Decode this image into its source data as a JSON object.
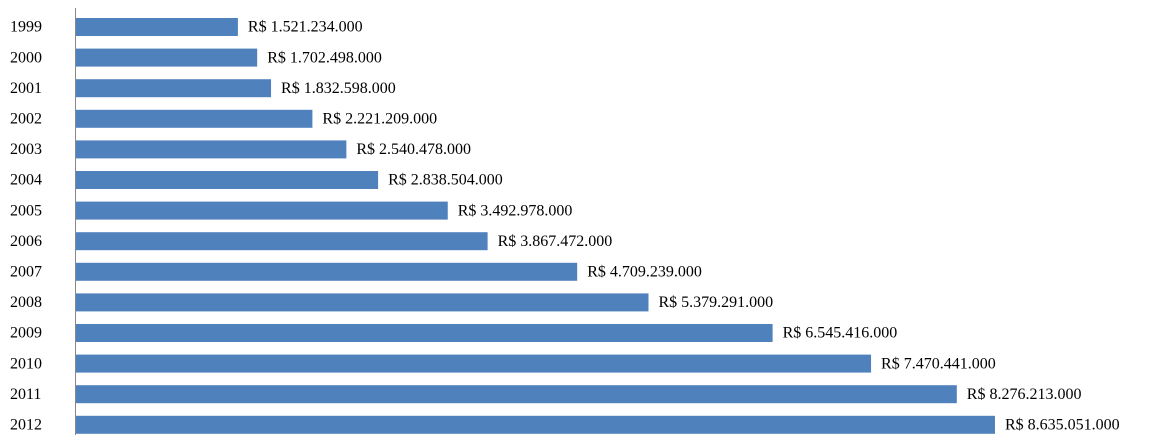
{
  "chart_data": {
    "type": "bar",
    "orientation": "horizontal",
    "color": "#4f81bd",
    "categories": [
      "1999",
      "2000",
      "2001",
      "2002",
      "2003",
      "2004",
      "2005",
      "2006",
      "2007",
      "2008",
      "2009",
      "2010",
      "2011",
      "2012"
    ],
    "values": [
      1521234000,
      1702498000,
      1832598000,
      2221209000,
      2540478000,
      2838504000,
      3492978000,
      3867472000,
      4709239000,
      5379291000,
      6545416000,
      7470441000,
      8276213000,
      8635051000
    ],
    "value_labels": [
      "R$ 1.521.234.000",
      "R$ 1.702.498.000",
      "R$ 1.832.598.000",
      "R$ 2.221.209.000",
      "R$ 2.540.478.000",
      "R$ 2.838.504.000",
      "R$ 3.492.978.000",
      "R$ 3.867.472.000",
      "R$ 4.709.239.000",
      "R$ 5.379.291.000",
      "R$ 6.545.416.000",
      "R$ 7.470.441.000",
      "R$ 8.276.213.000",
      "R$ 8.635.051.000"
    ]
  }
}
